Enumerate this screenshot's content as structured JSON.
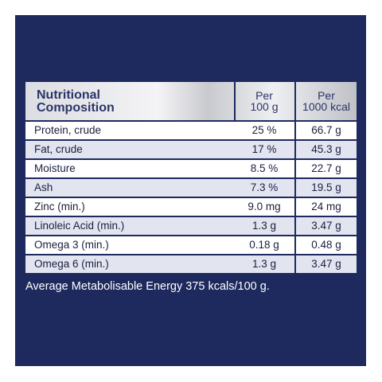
{
  "colors": {
    "panel": "#1e2a5e",
    "header_text": "#2a3568",
    "row_light": "#ffffff",
    "row_tint": "#e2e4ef"
  },
  "table": {
    "header": {
      "title_line1": "Nutritional",
      "title_line2": "Composition",
      "col1_line1": "Per",
      "col1_line2": "100 g",
      "col2_line1": "Per",
      "col2_line2": "1000 kcal"
    },
    "rows": [
      {
        "label": "Protein, crude",
        "per100g": "25 %",
        "per1000kcal": "66.7 g"
      },
      {
        "label": "Fat, crude",
        "per100g": "17 %",
        "per1000kcal": "45.3 g"
      },
      {
        "label": "Moisture",
        "per100g": "8.5 %",
        "per1000kcal": "22.7 g"
      },
      {
        "label": "Ash",
        "per100g": "7.3 %",
        "per1000kcal": "19.5 g"
      },
      {
        "label": "Zinc (min.)",
        "per100g": "9.0 mg",
        "per1000kcal": "24 mg"
      },
      {
        "label": "Linoleic Acid (min.)",
        "per100g": "1.3 g",
        "per1000kcal": "3.47 g"
      },
      {
        "label": "Omega 3 (min.)",
        "per100g": "0.18 g",
        "per1000kcal": "0.48 g"
      },
      {
        "label": "Omega 6 (min.)",
        "per100g": "1.3 g",
        "per1000kcal": "3.47 g"
      }
    ]
  },
  "footnote": "Average Metabolisable Energy 375 kcals/100 g."
}
